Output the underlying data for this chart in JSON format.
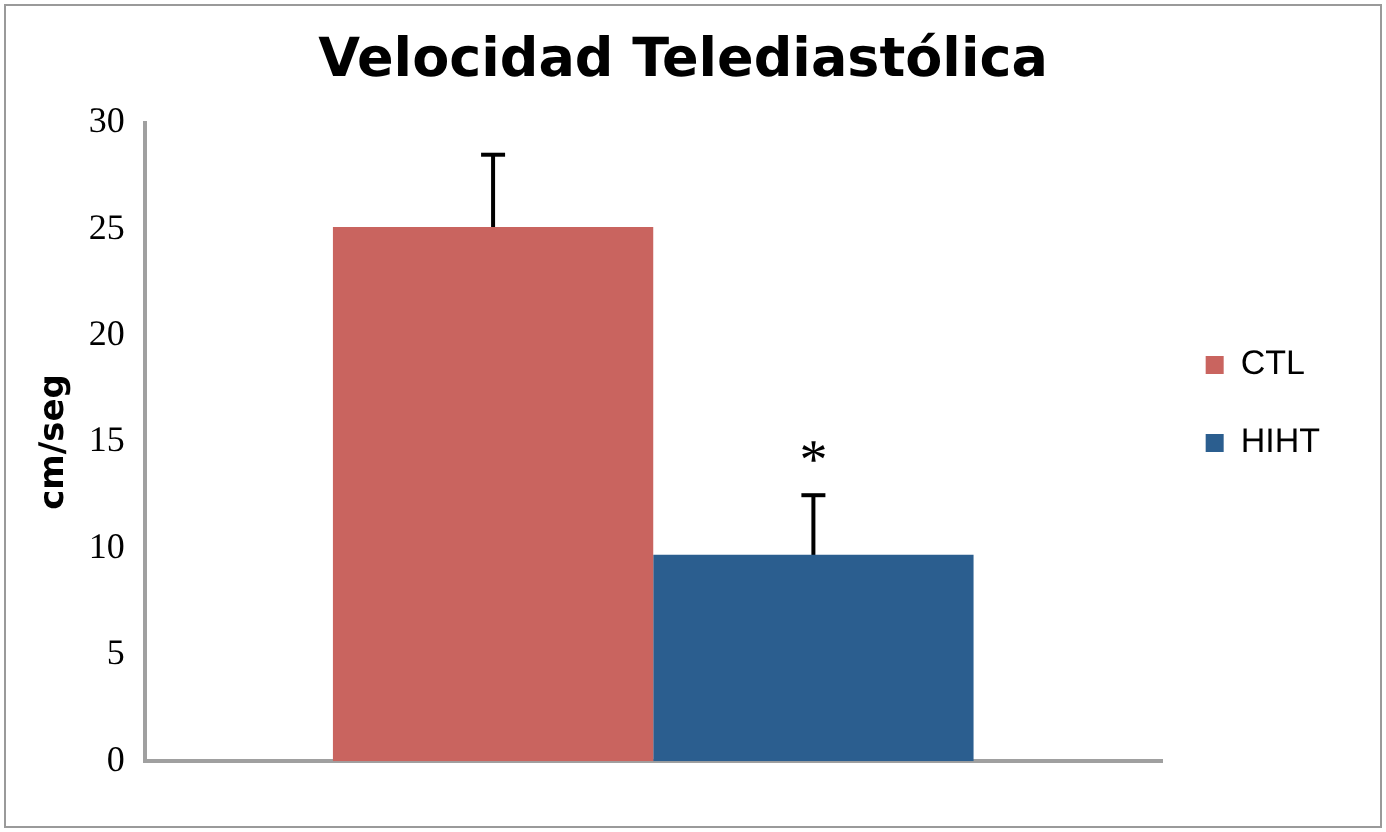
{
  "chart_data": {
    "type": "bar",
    "title": "Velocidad Telediastólica",
    "ylabel": "cm/seg",
    "categories": [
      null
    ],
    "series": [
      {
        "name": "CTL",
        "color": "#c9645f",
        "values": [
          25.1
        ],
        "errors": [
          3.4
        ]
      },
      {
        "name": "HIHT",
        "color": "#2b5e8f",
        "values": [
          9.7
        ],
        "errors": [
          2.8
        ]
      }
    ],
    "ylim": [
      0,
      30
    ],
    "yticks": [
      0,
      5,
      10,
      15,
      20,
      25,
      30
    ],
    "grid": false,
    "legend": "right",
    "annotations": [
      "*"
    ]
  }
}
